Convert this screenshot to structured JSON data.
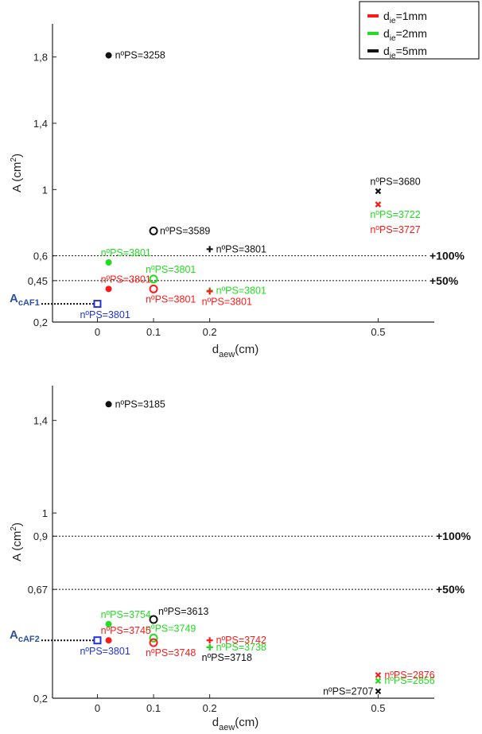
{
  "legend": [
    {
      "main": "d",
      "sub": "ie",
      "rest": "=1mm",
      "color": "#FF1A1A"
    },
    {
      "main": "d",
      "sub": "ie",
      "rest": "=2mm",
      "color": "#22DD22"
    },
    {
      "main": "d",
      "sub": "ie",
      "rest": "=5mm",
      "color": "#111111"
    }
  ],
  "colors": {
    "red": "#FF1A1A",
    "green": "#22DD22",
    "black": "#111111",
    "blue": "#2233DD"
  },
  "chart_data": [
    {
      "type": "scatter",
      "xlabel": {
        "main": "d",
        "sub": "aew",
        "rest": "(cm)"
      },
      "ylabel": {
        "main": "A (cm",
        "sup": "2",
        "rest": ")"
      },
      "xlim": [
        -0.08,
        0.6
      ],
      "ylim": [
        0.2,
        2.0
      ],
      "xticks": [
        {
          "value": 0,
          "label": "0"
        },
        {
          "value": 0.1,
          "label": "0.1"
        },
        {
          "value": 0.2,
          "label": "0.2"
        },
        {
          "value": 0.5,
          "label": "0.5"
        }
      ],
      "yticks": [
        {
          "value": 0.2,
          "label": "0,2"
        },
        {
          "value": 0.45,
          "label": "0,45"
        },
        {
          "value": 0.6,
          "label": "0,6"
        },
        {
          "value": 1.0,
          "label": "1"
        },
        {
          "value": 1.4,
          "label": "1,4"
        },
        {
          "value": 1.8,
          "label": "1,8"
        }
      ],
      "reference_lines": [
        {
          "y": 0.6,
          "label": "+100%"
        },
        {
          "y": 0.45,
          "label": "+50%"
        }
      ],
      "baseline": {
        "label_main": "A",
        "label_sub": "cAF1",
        "y": 0.31,
        "x": 0,
        "annotation": "nºPS=3801"
      },
      "points": [
        {
          "x": 0.02,
          "y": 1.81,
          "color": "black",
          "marker": "dot",
          "label": "nºPS=3258",
          "label_pos": "right"
        },
        {
          "x": 0.1,
          "y": 0.75,
          "color": "black",
          "marker": "circle",
          "label": "nºPS=3589",
          "label_pos": "right"
        },
        {
          "x": 0.2,
          "y": 0.64,
          "color": "black",
          "marker": "plus",
          "label": "nºPS=3801",
          "label_pos": "right"
        },
        {
          "x": 0.5,
          "y": 0.99,
          "color": "black",
          "marker": "cross",
          "label": "nºPS=3680",
          "label_pos": "above"
        },
        {
          "x": 0.02,
          "y": 0.56,
          "color": "green",
          "marker": "dot",
          "label": "nºPS=3801",
          "label_pos": "above"
        },
        {
          "x": 0.1,
          "y": 0.46,
          "color": "green",
          "marker": "circle",
          "label": "nºPS=3801",
          "label_pos": "above"
        },
        {
          "x": 0.2,
          "y": 0.39,
          "color": "green",
          "marker": "plus",
          "label": "nºPS=3801",
          "label_pos": "right"
        },
        {
          "x": 0.5,
          "y": 0.91,
          "color": "green",
          "marker": "cross",
          "label": "nºPS=3722",
          "label_pos": "below"
        },
        {
          "x": 0.02,
          "y": 0.4,
          "color": "red",
          "marker": "dot",
          "label": "nºPS=3801",
          "label_pos": "above"
        },
        {
          "x": 0.1,
          "y": 0.4,
          "color": "red",
          "marker": "circle",
          "label": "nºPS=3801",
          "label_pos": "below"
        },
        {
          "x": 0.2,
          "y": 0.385,
          "color": "red",
          "marker": "plus",
          "label": "nºPS=3801",
          "label_pos": "below"
        },
        {
          "x": 0.5,
          "y": 0.91,
          "color": "red",
          "marker": "cross",
          "label": "nºPS=3727",
          "label_pos": "below2"
        }
      ]
    },
    {
      "type": "scatter",
      "xlabel": {
        "main": "d",
        "sub": "aew",
        "rest": "(cm)"
      },
      "ylabel": {
        "main": "A (cm",
        "sup": "2",
        "rest": ")"
      },
      "xlim": [
        -0.08,
        0.6
      ],
      "ylim": [
        0.2,
        1.55
      ],
      "xticks": [
        {
          "value": 0,
          "label": "0"
        },
        {
          "value": 0.1,
          "label": "0.1"
        },
        {
          "value": 0.2,
          "label": "0.2"
        },
        {
          "value": 0.5,
          "label": "0.5"
        }
      ],
      "yticks": [
        {
          "value": 0.2,
          "label": "0,2"
        },
        {
          "value": 0.67,
          "label": "0,67"
        },
        {
          "value": 0.9,
          "label": "0,9"
        },
        {
          "value": 1.0,
          "label": "1"
        },
        {
          "value": 1.4,
          "label": "1,4"
        }
      ],
      "reference_lines": [
        {
          "y": 0.9,
          "label": "+100%"
        },
        {
          "y": 0.67,
          "label": "+50%"
        }
      ],
      "baseline": {
        "label_main": "A",
        "label_sub": "cAF2",
        "y": 0.45,
        "x": 0,
        "annotation": "nºPS=3801"
      },
      "points": [
        {
          "x": 0.02,
          "y": 1.47,
          "color": "black",
          "marker": "dot",
          "label": "nºPS=3185",
          "label_pos": "right"
        },
        {
          "x": 0.1,
          "y": 0.54,
          "color": "black",
          "marker": "circle",
          "label": "nºPS=3613",
          "label_pos": "upright"
        },
        {
          "x": 0.2,
          "y": 0.42,
          "color": "black",
          "marker": "plus",
          "label": "nºPS=3718",
          "label_pos": "below"
        },
        {
          "x": 0.5,
          "y": 0.23,
          "color": "black",
          "marker": "cross",
          "label": "nºPS=2707",
          "label_pos": "left"
        },
        {
          "x": 0.02,
          "y": 0.52,
          "color": "green",
          "marker": "dot",
          "label": "nºPS=3754",
          "label_pos": "above"
        },
        {
          "x": 0.1,
          "y": 0.46,
          "color": "green",
          "marker": "circle",
          "label": "nºPS=3749",
          "label_pos": "above"
        },
        {
          "x": 0.2,
          "y": 0.42,
          "color": "green",
          "marker": "plus",
          "label": "nºPS=3738",
          "label_pos": "right"
        },
        {
          "x": 0.5,
          "y": 0.275,
          "color": "green",
          "marker": "cross",
          "label": "nºPS=2856",
          "label_pos": "right"
        },
        {
          "x": 0.02,
          "y": 0.45,
          "color": "red",
          "marker": "dot",
          "label": "nºPS=3745",
          "label_pos": "above"
        },
        {
          "x": 0.1,
          "y": 0.44,
          "color": "red",
          "marker": "circle",
          "label": "nºPS=3748",
          "label_pos": "below"
        },
        {
          "x": 0.2,
          "y": 0.45,
          "color": "red",
          "marker": "plus",
          "label": "nºPS=3742",
          "label_pos": "right"
        },
        {
          "x": 0.5,
          "y": 0.3,
          "color": "red",
          "marker": "cross",
          "label": "nºPS=2876",
          "label_pos": "right"
        }
      ]
    }
  ]
}
